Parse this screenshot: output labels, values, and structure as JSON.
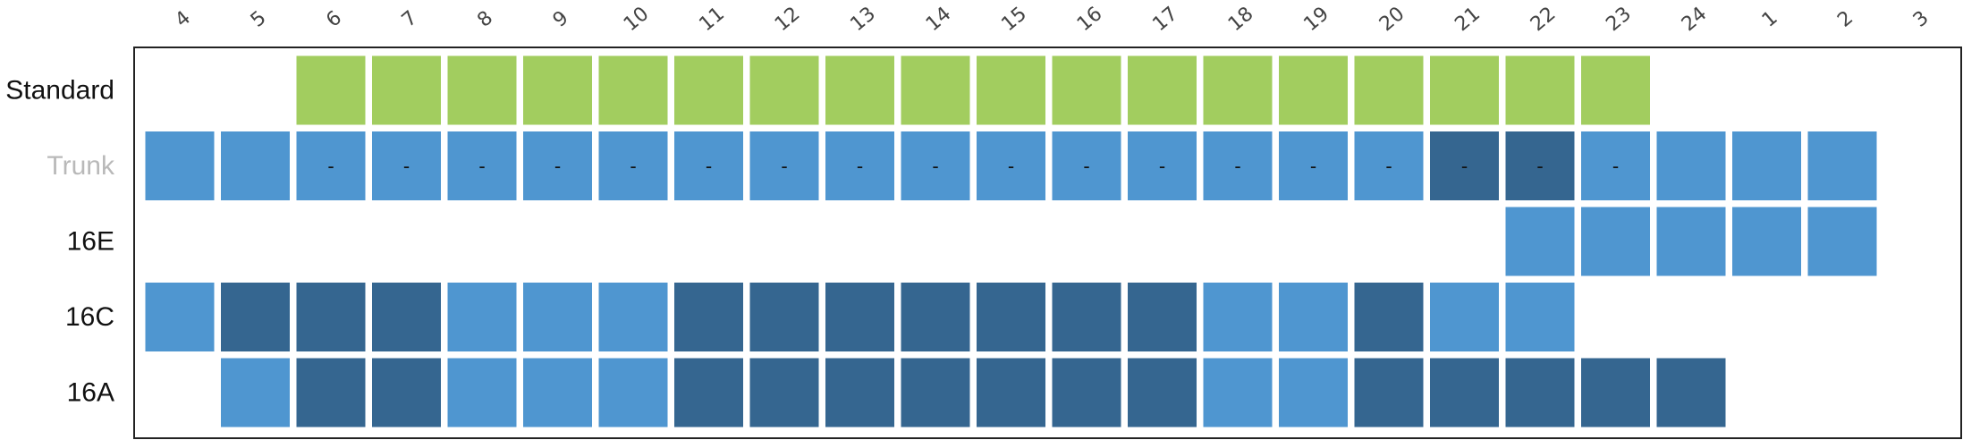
{
  "chart_data": {
    "type": "heatmap",
    "columns": [
      "4",
      "5",
      "6",
      "7",
      "8",
      "9",
      "10",
      "11",
      "12",
      "13",
      "14",
      "15",
      "16",
      "17",
      "18",
      "19",
      "20",
      "21",
      "22",
      "23",
      "24",
      "1",
      "2",
      "3"
    ],
    "rows": [
      {
        "label": "Standard",
        "muted": false,
        "cells": [
          "",
          "",
          "green",
          "green",
          "green",
          "green",
          "green",
          "green",
          "green",
          "green",
          "green",
          "green",
          "green",
          "green",
          "green",
          "green",
          "green",
          "green",
          "green",
          "green",
          "",
          "",
          "",
          ""
        ],
        "marks": [
          "",
          "",
          "",
          "",
          "",
          "",
          "",
          "",
          "",
          "",
          "",
          "",
          "",
          "",
          "",
          "",
          "",
          "",
          "",
          "",
          "",
          "",
          "",
          ""
        ]
      },
      {
        "label": "Trunk",
        "muted": true,
        "cells": [
          "light",
          "light",
          "light",
          "light",
          "light",
          "light",
          "light",
          "light",
          "light",
          "light",
          "light",
          "light",
          "light",
          "light",
          "light",
          "light",
          "light",
          "dark",
          "dark",
          "light",
          "light",
          "light",
          "light",
          ""
        ],
        "marks": [
          "",
          "",
          "-",
          "-",
          "-",
          "-",
          "-",
          "-",
          "-",
          "-",
          "-",
          "-",
          "-",
          "-",
          "-",
          "-",
          "-",
          "-",
          "-",
          "-",
          "",
          "",
          "",
          ""
        ]
      },
      {
        "label": "16E",
        "muted": false,
        "cells": [
          "",
          "",
          "",
          "",
          "",
          "",
          "",
          "",
          "",
          "",
          "",
          "",
          "",
          "",
          "",
          "",
          "",
          "",
          "light",
          "light",
          "light",
          "light",
          "light",
          ""
        ],
        "marks": [
          "",
          "",
          "",
          "",
          "",
          "",
          "",
          "",
          "",
          "",
          "",
          "",
          "",
          "",
          "",
          "",
          "",
          "",
          "",
          "",
          "",
          "",
          "",
          ""
        ]
      },
      {
        "label": "16C",
        "muted": false,
        "cells": [
          "light",
          "dark",
          "dark",
          "dark",
          "light",
          "light",
          "light",
          "dark",
          "dark",
          "dark",
          "dark",
          "dark",
          "dark",
          "dark",
          "light",
          "light",
          "dark",
          "light",
          "light",
          "",
          "",
          "",
          "",
          ""
        ],
        "marks": [
          "",
          "",
          "",
          "",
          "",
          "",
          "",
          "",
          "",
          "",
          "",
          "",
          "",
          "",
          "",
          "",
          "",
          "",
          "",
          "",
          "",
          "",
          "",
          ""
        ]
      },
      {
        "label": "16A",
        "muted": false,
        "cells": [
          "",
          "light",
          "dark",
          "dark",
          "light",
          "light",
          "light",
          "dark",
          "dark",
          "dark",
          "dark",
          "dark",
          "dark",
          "dark",
          "light",
          "light",
          "dark",
          "dark",
          "dark",
          "dark",
          "dark",
          "",
          "",
          ""
        ],
        "marks": [
          "",
          "",
          "",
          "",
          "",
          "",
          "",
          "",
          "",
          "",
          "",
          "",
          "",
          "",
          "",
          "",
          "",
          "",
          "",
          "",
          "",
          "",
          "",
          ""
        ]
      }
    ],
    "colors": {
      "green": "#a2cd5f",
      "light": "#4f96d0",
      "dark": "#356690",
      "frame": "#222222",
      "muted_label": "#b9b9b9"
    },
    "grid": false,
    "legend": "none"
  }
}
